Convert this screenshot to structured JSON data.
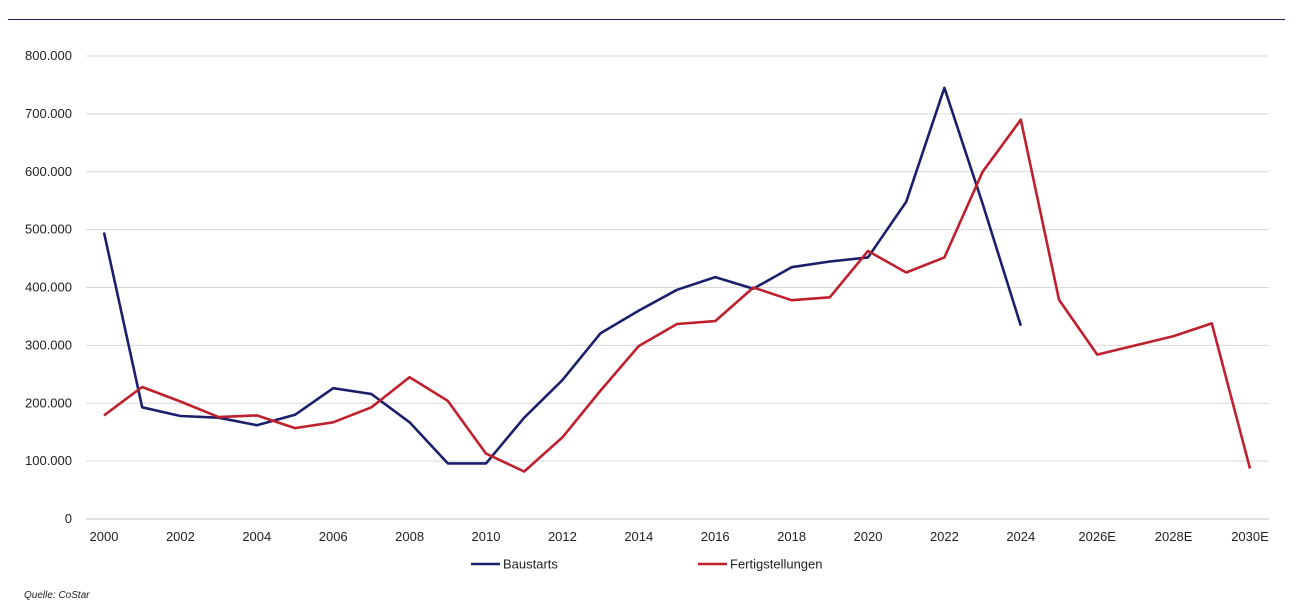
{
  "source": "Quelle: CoStar",
  "colors": {
    "Baustarts": "#1b1f6b",
    "Fertigstellungen": "#c0202e",
    "grid": "#d9d9d9"
  },
  "chart_data": {
    "type": "line",
    "categories": [
      "2000",
      "2001",
      "2002",
      "2003",
      "2004",
      "2005",
      "2006",
      "2007",
      "2008",
      "2009",
      "2010",
      "2011",
      "2012",
      "2013",
      "2014",
      "2015",
      "2016",
      "2017",
      "2018",
      "2019",
      "2020",
      "2021",
      "2022",
      "2023",
      "2024",
      "2025",
      "2026E",
      "2027",
      "2028E",
      "2029",
      "2030E"
    ],
    "x_tick_labels": [
      "2000",
      "2002",
      "2004",
      "2006",
      "2008",
      "2010",
      "2012",
      "2014",
      "2016",
      "2018",
      "2020",
      "2022",
      "2024",
      "2026E",
      "2028E",
      "2030E"
    ],
    "y_tick_labels": [
      "0",
      "100.000",
      "200.000",
      "300.000",
      "400.000",
      "500.000",
      "600.000",
      "700.000",
      "800.000"
    ],
    "ylim": [
      0,
      800000
    ],
    "grid": true,
    "legend_position": "bottom",
    "series": [
      {
        "name": "Baustarts",
        "values": [
          495000,
          193000,
          178000,
          175000,
          162000,
          180000,
          226000,
          216000,
          167000,
          96000,
          96000,
          175000,
          240000,
          321000,
          360000,
          396000,
          418000,
          398000,
          435000,
          445000,
          452000,
          548000,
          745000,
          545000,
          334000,
          null,
          null,
          null,
          null,
          null,
          null
        ]
      },
      {
        "name": "Fertigstellungen",
        "values": [
          179000,
          228000,
          203000,
          176000,
          179000,
          157000,
          167000,
          193000,
          245000,
          204000,
          113000,
          82000,
          141000,
          222000,
          299000,
          337000,
          342000,
          400000,
          378000,
          383000,
          463000,
          426000,
          452000,
          600000,
          690000,
          379000,
          284000,
          300000,
          316000,
          338000,
          87000
        ]
      }
    ]
  }
}
